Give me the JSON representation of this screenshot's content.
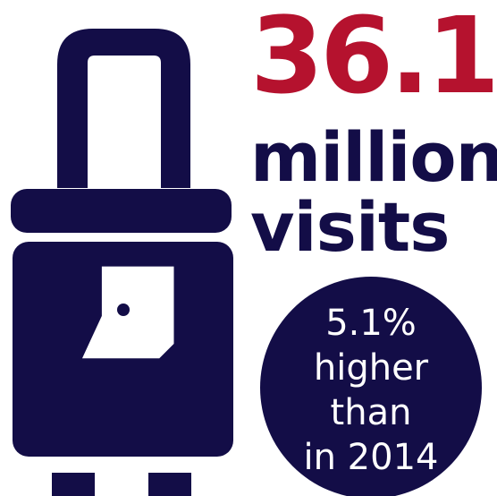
{
  "headline": {
    "number": "36.1",
    "line1": "million",
    "line2": "visits"
  },
  "badge": {
    "lines": [
      "5.1%",
      "higher",
      "than",
      "in 2014"
    ]
  },
  "colors": {
    "accent": "#b5122e",
    "navy": "#130d47",
    "background": "#ffffff"
  },
  "icons": {
    "main": "suitcase-icon",
    "tag": "luggage-tag-icon"
  }
}
